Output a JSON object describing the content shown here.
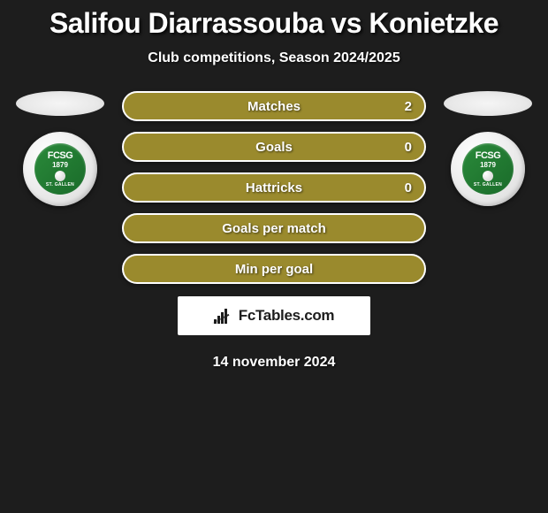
{
  "title": "Salifou Diarrassouba vs Konietzke",
  "subtitle": "Club competitions, Season 2024/2025",
  "badge": {
    "top": "FCSG",
    "mid": "1879",
    "bot": "ST. GALLEN",
    "bg_color": "#2a8a3a"
  },
  "stats": [
    {
      "label": "Matches",
      "value_right": "2"
    },
    {
      "label": "Goals",
      "value_right": "0"
    },
    {
      "label": "Hattricks",
      "value_right": "0"
    },
    {
      "label": "Goals per match",
      "value_right": ""
    },
    {
      "label": "Min per goal",
      "value_right": ""
    }
  ],
  "pill_style": {
    "bg_color": "#9a8a2d",
    "border_color": "#ffffff",
    "text_color": "#ffffff",
    "font_size": 15
  },
  "brand": {
    "text": "FcTables.com"
  },
  "date": "14 november 2024",
  "colors": {
    "page_bg": "#1d1d1d",
    "title_color": "#ffffff"
  }
}
